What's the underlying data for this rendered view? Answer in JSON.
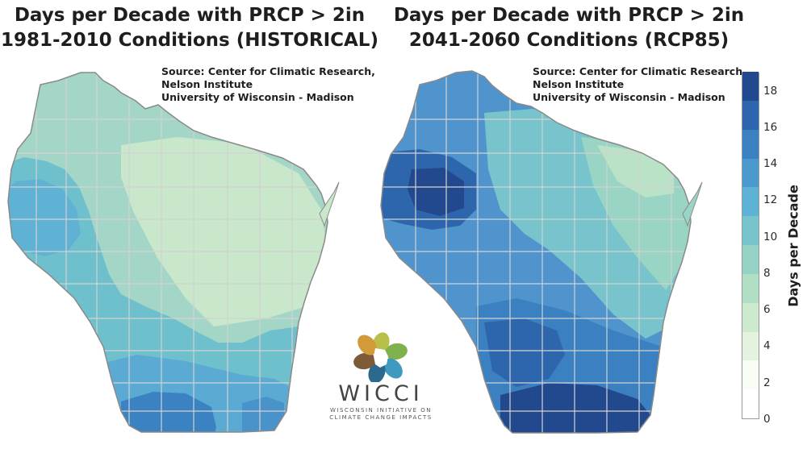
{
  "maps": [
    {
      "title_line1": "Days per Decade with PRCP > 2in",
      "title_line2": "1981-2010 Conditions (HISTORICAL)",
      "source_lines": [
        "Source:  Center for Climatic Research,",
        "Nelson Institute",
        "University of Wisconsin - Madison"
      ],
      "scenario": "HISTORICAL",
      "period": "1981-2010",
      "value_range_days_per_decade": [
        8,
        17
      ],
      "pattern": "greens (8-10) across north-central and east, blues rising to 16-17 in the far southwest"
    },
    {
      "title_line1": "Days per Decade with PRCP > 2in",
      "title_line2": "2041-2060 Conditions (RCP85)",
      "source_lines": [
        "Source:  Center for Climatic Research,",
        "Nelson Institute",
        "University of Wisconsin - Madison"
      ],
      "scenario": "RCP85",
      "period": "2041-2060",
      "value_range_days_per_decade": [
        9,
        19
      ],
      "pattern": "northwest and southwest/south-central dark blue (16-19), central and northeast lighter (10-12)"
    }
  ],
  "legend": {
    "title": "Days per Decade",
    "ticks": [
      "18",
      "16",
      "14",
      "12",
      "10",
      "8",
      "6",
      "4",
      "2",
      "0"
    ],
    "range": [
      0,
      19
    ],
    "colors": [
      "#ffffff",
      "#f7fcf5",
      "#e4f3df",
      "#cdeace",
      "#b0dfc6",
      "#93d2c4",
      "#78c4cd",
      "#5eb2d6",
      "#4a99cd",
      "#3b80c0",
      "#2e66ad",
      "#22498d"
    ]
  },
  "logo": {
    "name": "WICCI",
    "subtitle_line1": "WISCONSIN INITIATIVE ON",
    "subtitle_line2": "CLIMATE CHANGE IMPACTS",
    "petal_colors": [
      "#b9c04a",
      "#7fb24d",
      "#3e9bbf",
      "#2b6a8e",
      "#7d5a3a",
      "#d39a3a"
    ]
  }
}
